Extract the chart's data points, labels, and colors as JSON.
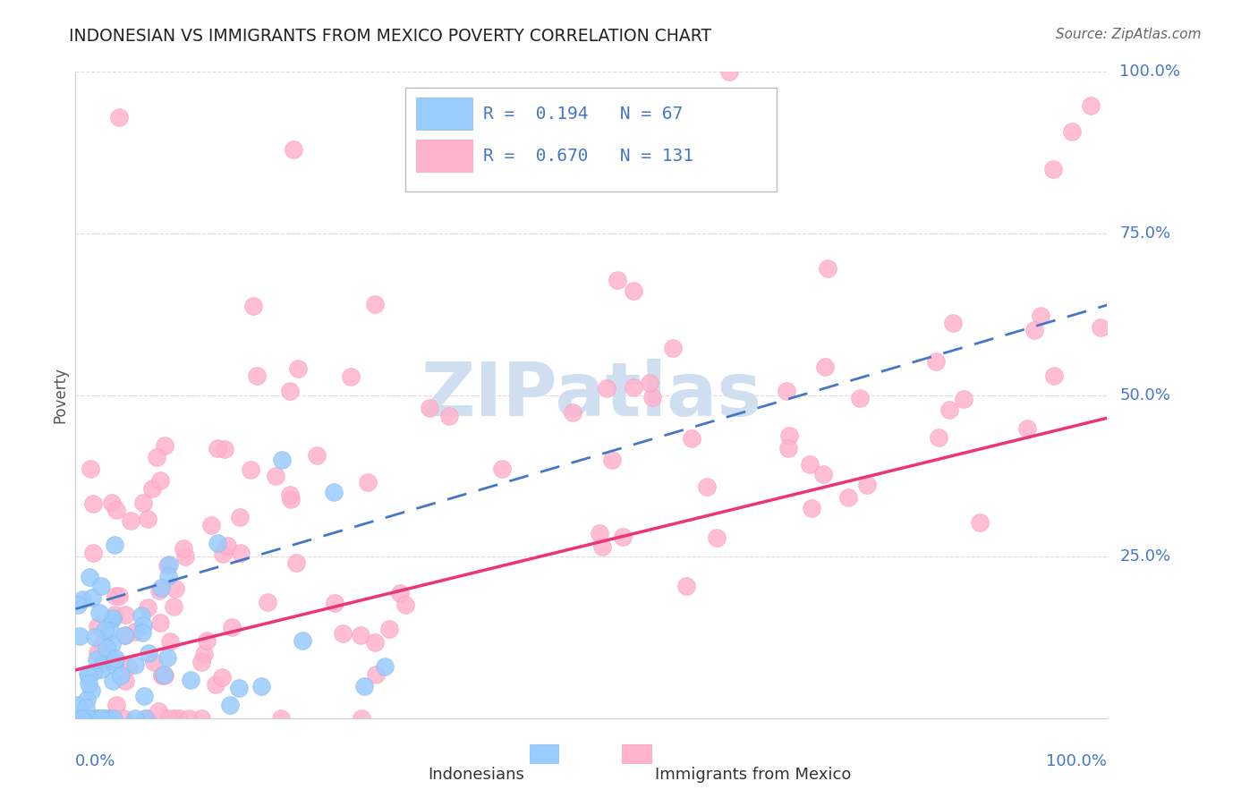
{
  "title": "INDONESIAN VS IMMIGRANTS FROM MEXICO POVERTY CORRELATION CHART",
  "source": "Source: ZipAtlas.com",
  "ylabel": "Poverty",
  "R_indonesian": 0.194,
  "N_indonesian": 67,
  "R_mexico": 0.67,
  "N_mexico": 131,
  "indonesian_color": "#99CCFF",
  "indonesian_edge": "#88BBEE",
  "mexico_color": "#FFB3CC",
  "mexico_edge": "#FF99BB",
  "indonesian_line_color": "#4477CC",
  "mexico_line_color": "#EE3377",
  "watermark_color": "#D0DFF0",
  "label_color": "#4477CC",
  "title_color": "#222222",
  "source_color": "#666666",
  "grid_color": "#DDDDDD",
  "spine_color": "#CCCCCC"
}
